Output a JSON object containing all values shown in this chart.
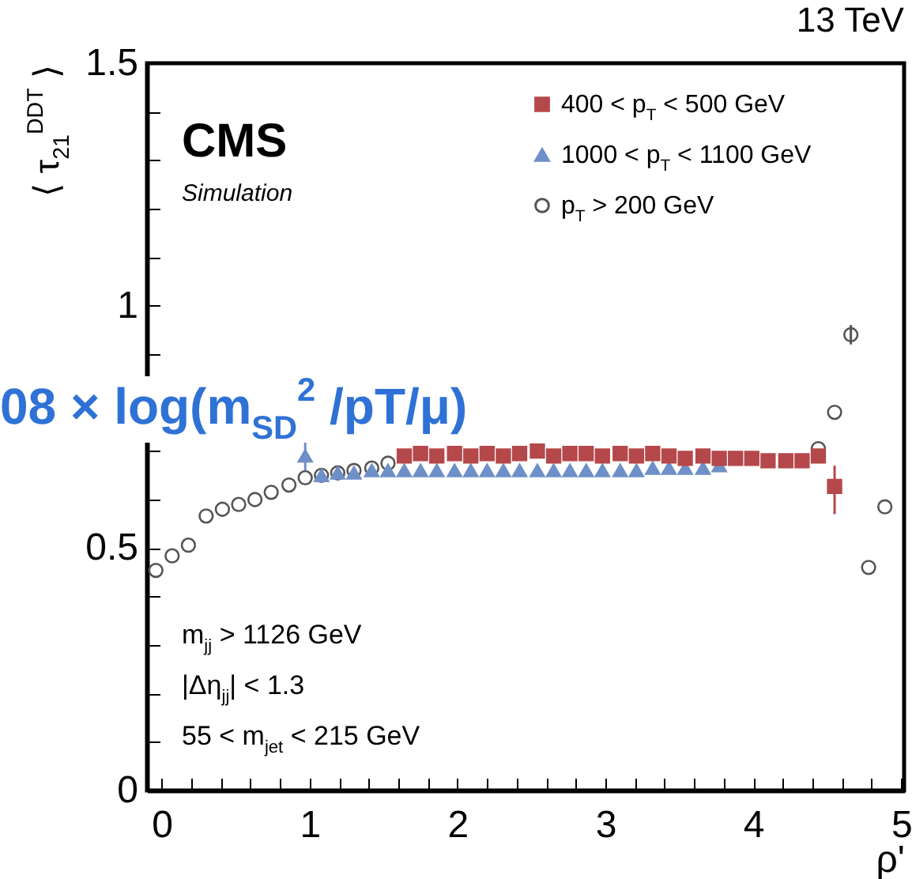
{
  "chart_data": {
    "type": "scatter",
    "title": "13 TeV",
    "xlabel": "ρ'",
    "ylabel": "⟨ τ$_{21}$$^{DDT}$ ⟩",
    "xlim": [
      -0.1,
      5.02
    ],
    "ylim": [
      0,
      1.5
    ],
    "xticks": [
      0,
      {
        "value": 0.2,
        "label": null
      },
      {
        "value": 0.4,
        "label": null
      },
      {
        "value": 0.6,
        "label": null
      },
      {
        "value": 0.8,
        "label": null
      },
      1,
      {
        "value": 1.2,
        "label": null
      },
      {
        "value": 1.4,
        "label": null
      },
      {
        "value": 1.6,
        "label": null
      },
      {
        "value": 1.8,
        "label": null
      },
      2,
      {
        "value": 2.2,
        "label": null
      },
      {
        "value": 2.4,
        "label": null
      },
      {
        "value": 2.6,
        "label": null
      },
      {
        "value": 2.8,
        "label": null
      },
      3,
      {
        "value": 3.2,
        "label": null
      },
      {
        "value": 3.4,
        "label": null
      },
      {
        "value": 3.6,
        "label": null
      },
      {
        "value": 3.8,
        "label": null
      },
      4,
      {
        "value": 4.2,
        "label": null
      },
      {
        "value": 4.4,
        "label": null
      },
      {
        "value": 4.6,
        "label": null
      },
      {
        "value": 4.8,
        "label": null
      },
      5
    ],
    "yticks": [
      0,
      {
        "value": 0.1,
        "label": null
      },
      {
        "value": 0.2,
        "label": null
      },
      {
        "value": 0.3,
        "label": null
      },
      {
        "value": 0.4,
        "label": null
      },
      0.5,
      {
        "value": 0.6,
        "label": null
      },
      {
        "value": 0.7,
        "label": null
      },
      {
        "value": 0.8,
        "label": null
      },
      {
        "value": 0.9,
        "label": null
      },
      1,
      {
        "value": 1.1,
        "label": null
      },
      {
        "value": 1.2,
        "label": null
      },
      {
        "value": 1.3,
        "label": null
      },
      {
        "value": 1.4,
        "label": null
      },
      1.5
    ],
    "legend": "top right",
    "grid": false,
    "series": [
      {
        "name": "400 < p$_{T}$ < 500 GeV",
        "color": "#b5484b",
        "marker": "square",
        "x": [
          1.64,
          1.75,
          1.86,
          1.98,
          2.09,
          2.2,
          2.31,
          2.42,
          2.54,
          2.65,
          2.76,
          2.87,
          2.98,
          3.1,
          3.21,
          3.32,
          3.43,
          3.54,
          3.66,
          3.77,
          3.88,
          3.99,
          4.1,
          4.22,
          4.33,
          4.44,
          4.55
        ],
        "values": [
          0.69,
          0.695,
          0.69,
          0.695,
          0.69,
          0.695,
          0.69,
          0.695,
          0.7,
          0.69,
          0.695,
          0.695,
          0.69,
          0.695,
          0.69,
          0.695,
          0.69,
          0.685,
          0.69,
          0.685,
          0.685,
          0.685,
          0.68,
          0.68,
          0.68,
          0.69,
          0.627
        ],
        "errors": [
          null,
          null,
          null,
          null,
          null,
          null,
          null,
          null,
          null,
          null,
          null,
          null,
          null,
          null,
          null,
          null,
          null,
          null,
          null,
          null,
          null,
          null,
          null,
          null,
          null,
          null,
          [
            0.57,
            0.67
          ]
        ]
      },
      {
        "name": "1000 < p$_{T}$ < 1100 GeV",
        "color": "#6f8fc8",
        "marker": "triangle",
        "x": [
          0.97,
          1.08,
          1.19,
          1.3,
          1.42,
          1.53,
          1.64,
          1.75,
          1.86,
          1.98,
          2.09,
          2.2,
          2.31,
          2.42,
          2.54,
          2.65,
          2.76,
          2.87,
          2.98,
          3.1,
          3.21,
          3.32,
          3.43,
          3.54,
          3.66,
          3.77
        ],
        "values": [
          0.69,
          0.65,
          0.655,
          0.655,
          0.66,
          0.66,
          0.66,
          0.66,
          0.66,
          0.66,
          0.66,
          0.66,
          0.66,
          0.66,
          0.66,
          0.66,
          0.66,
          0.66,
          0.66,
          0.66,
          0.66,
          0.665,
          0.665,
          0.665,
          0.665,
          0.67
        ],
        "errors": [
          [
            0.66,
            0.72
          ],
          null,
          null,
          null,
          null,
          null,
          null,
          null,
          null,
          null,
          null,
          null,
          null,
          null,
          null,
          null,
          null,
          null,
          null,
          null,
          null,
          null,
          null,
          null,
          null,
          null
        ]
      },
      {
        "name": "p$_{T}$ > 200 GeV",
        "color": "#555555",
        "marker": "circle",
        "x": [
          -0.04,
          0.07,
          0.18,
          0.3,
          0.41,
          0.52,
          0.63,
          0.74,
          0.86,
          0.97,
          1.08,
          1.19,
          1.3,
          1.42,
          1.53,
          4.44,
          4.55,
          4.66,
          4.78,
          4.89
        ],
        "values": [
          0.454,
          0.484,
          0.506,
          0.566,
          0.58,
          0.59,
          0.6,
          0.615,
          0.63,
          0.645,
          0.65,
          0.655,
          0.66,
          0.665,
          0.675,
          0.705,
          0.78,
          0.94,
          0.46,
          0.585
        ],
        "errors": [
          null,
          null,
          null,
          null,
          null,
          null,
          null,
          null,
          null,
          null,
          null,
          null,
          null,
          null,
          null,
          null,
          null,
          [
            0.92,
            0.96
          ],
          null,
          null
        ]
      }
    ],
    "annotations": [
      "CMS",
      "Simulation",
      "m$_{jj}$ > 1126 GeV",
      "|Δη$_{jj}$| < 1.3",
      "55 < m$_{jet}$ < 215 GeV",
      "08 × log(m$_{SD}$$^{2}$ /pT/μ)"
    ]
  }
}
